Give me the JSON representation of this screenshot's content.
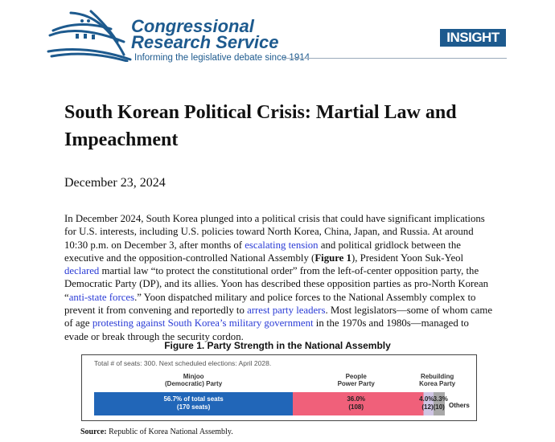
{
  "header": {
    "org_line1": "Congressional",
    "org_line2": "Research Service",
    "tagline": "Informing the legislative debate since 1914",
    "badge": "INSIGHT",
    "brand_color": "#1d5a8e"
  },
  "title": "South Korean Political Crisis: Martial Law and Impeachment",
  "date": "December 23, 2024",
  "body": [
    {
      "t": "In December 2024, South Korea plunged into a political crisis that could have significant implications for U.S. interests, including U.S. policies toward North Korea, China, Japan, and Russia. At around 10:30 p.m. on December 3, after months of "
    },
    {
      "t": "escalating tension",
      "link": true
    },
    {
      "t": " and political gridlock between the executive and the opposition-controlled National Assembly ("
    },
    {
      "t": "Figure 1",
      "bold": true
    },
    {
      "t": "), President Yoon Suk-Yeol "
    },
    {
      "t": "declared",
      "link": true
    },
    {
      "t": " martial law “to protect the constitutional order” from the left-of-center opposition party, the Democratic Party (DP), and its allies. Yoon has described these opposition parties as pro-North Korean “"
    },
    {
      "t": "anti-state forces",
      "link": true
    },
    {
      "t": ".” Yoon dispatched military and police forces to the National Assembly complex to prevent it from convening and reportedly to "
    },
    {
      "t": "arrest party leaders",
      "link": true
    },
    {
      "t": ". Most legislators—some of whom came of age "
    },
    {
      "t": "protesting against South Korea’s military government",
      "link": true
    },
    {
      "t": " in the 1970s and 1980s—managed to evade or break through the security cordon."
    }
  ],
  "figure": {
    "title": "Figure 1. Party Strength in the National Assembly",
    "note": "Total # of seats: 300. Next scheduled elections: April 2028.",
    "source_label": "Source:",
    "source_text": " Republic of Korea National Assembly.",
    "others_label": "Others"
  },
  "chart_data": {
    "type": "bar",
    "orientation": "horizontal-stacked",
    "title": "Figure 1. Party Strength in the National Assembly",
    "categories": [
      "Minjoo (Democratic) Party",
      "People Power Party",
      "Rebuilding Korea Party",
      "Others"
    ],
    "values": [
      56.7,
      36.0,
      4.0,
      3.3
    ],
    "seats": [
      170,
      108,
      12,
      10
    ],
    "value_labels": [
      "56.7% of total seats",
      "36.0%",
      "4.0%",
      "3.3%"
    ],
    "seat_labels": [
      "(170 seats)",
      "(108)",
      "(12)",
      "(10)"
    ],
    "name_labels": [
      [
        "Minjoo",
        "(Democratic) Party"
      ],
      [
        "People",
        "Power Party"
      ],
      [
        "Rebuilding",
        "Korea Party"
      ],
      []
    ],
    "colors": [
      "#2166b8",
      "#f0607a",
      "#cfc5e3",
      "#a8a8a8"
    ],
    "text_colors": [
      "#ffffff",
      "#222222",
      "#222222",
      "#222222"
    ]
  }
}
